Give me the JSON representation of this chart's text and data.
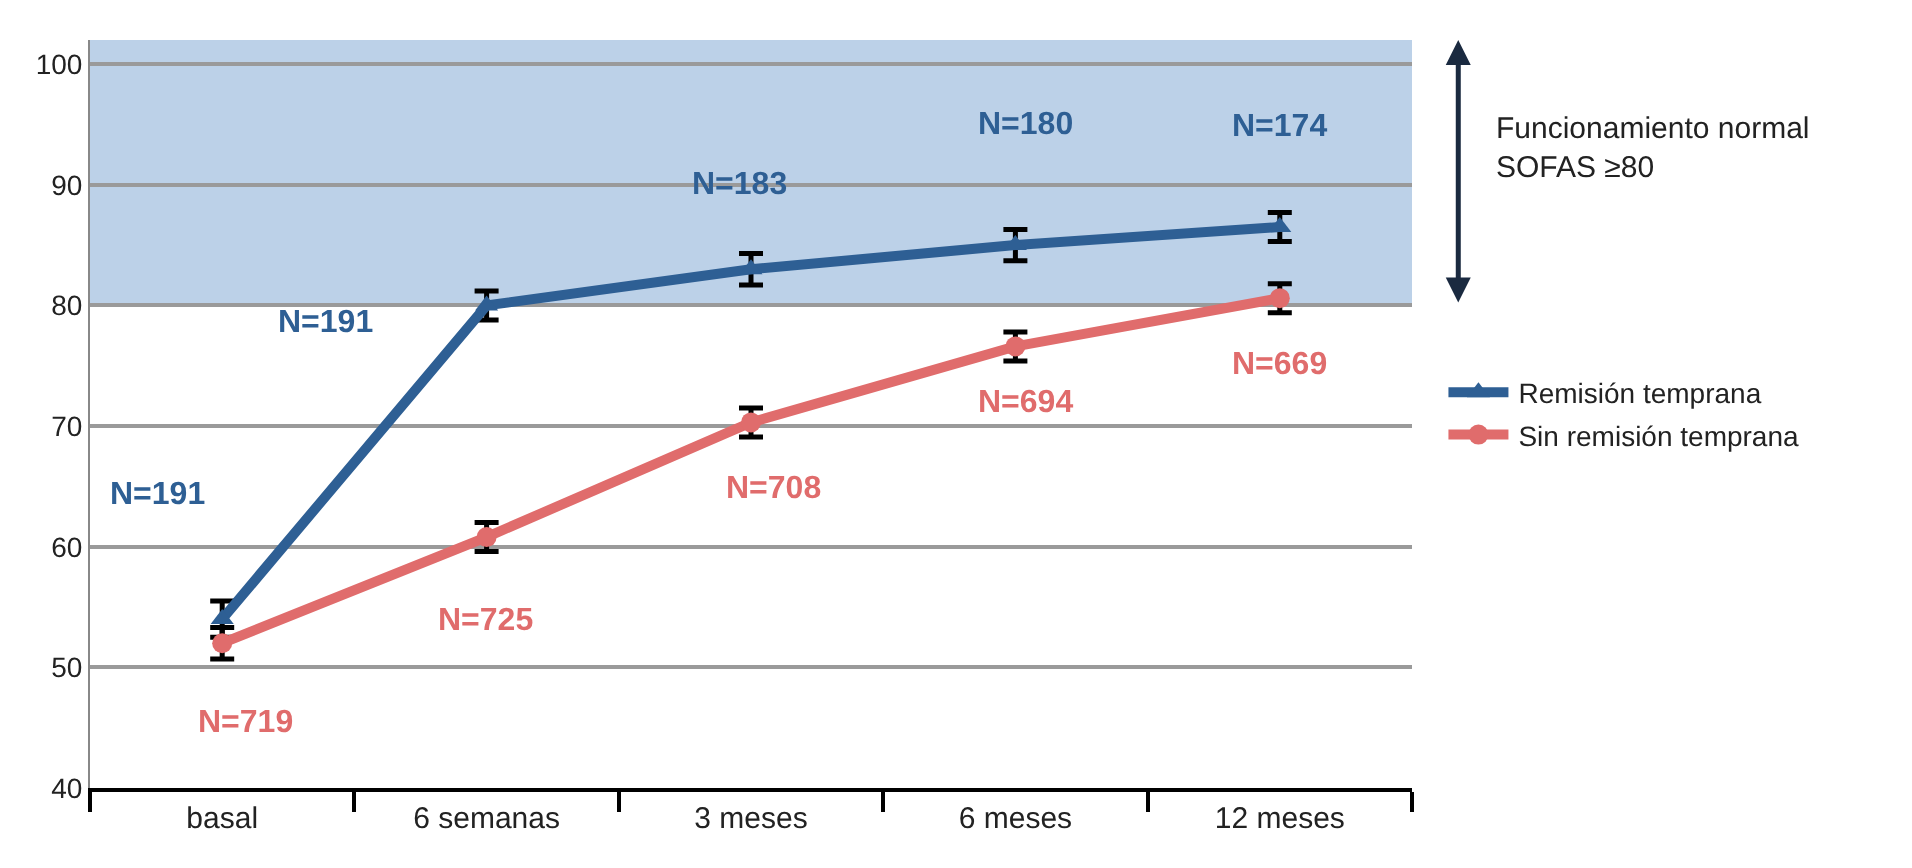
{
  "chart_data": {
    "type": "line",
    "categories": [
      "basal",
      "6 semanas",
      "3 meses",
      "6 meses",
      "12 meses"
    ],
    "series": [
      {
        "name": "Remisión temprana",
        "color": "#2e5f94",
        "marker": "triangle",
        "values": [
          54,
          80,
          83,
          85,
          86.5
        ],
        "errors": [
          1.5,
          1.2,
          1.3,
          1.3,
          1.2
        ]
      },
      {
        "name": "Sin remisión temprana",
        "color": "#e06c6c",
        "marker": "circle",
        "values": [
          52,
          60.8,
          70.3,
          76.6,
          80.6
        ],
        "errors": [
          1.3,
          1.2,
          1.2,
          1.2,
          1.2
        ]
      }
    ],
    "ylim": [
      40,
      102
    ],
    "yticks": [
      40,
      50,
      60,
      70,
      80,
      90,
      100
    ],
    "grid": "y",
    "legend": "right",
    "bands": [
      {
        "axis": "y",
        "from": 80,
        "to": 102,
        "label": "Funcionamiento normal\nSOFAS ≥80",
        "color": "#bcd1e8"
      }
    ],
    "annotations": [
      "N=191",
      "N=191",
      "N=183",
      "N=180",
      "N=174",
      "N=719",
      "N=725",
      "N=708",
      "N=694",
      "N=669"
    ]
  }
}
